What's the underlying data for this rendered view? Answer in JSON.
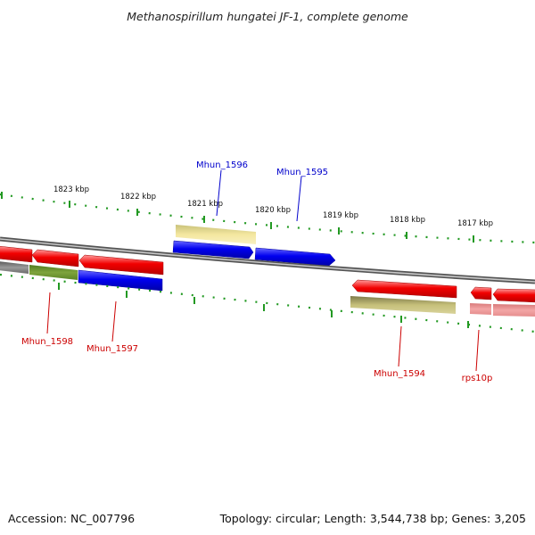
{
  "title": "Methanospirillum hungatei JF-1, complete genome",
  "footer": {
    "accession": "Accession: NC_007796",
    "summary": "Topology: circular; Length: 3,544,738 bp; Genes: 3,205"
  },
  "scale": {
    "labels": [
      "1823 kbp",
      "1822 kbp",
      "1821 kbp",
      "1820 kbp",
      "1819 kbp",
      "1818 kbp",
      "1817 kbp"
    ]
  },
  "genes": [
    {
      "name": "Mhun_1596",
      "strand": "forward"
    },
    {
      "name": "Mhun_1595",
      "strand": "forward"
    },
    {
      "name": "Mhun_1598",
      "strand": "reverse"
    },
    {
      "name": "Mhun_1597",
      "strand": "reverse"
    },
    {
      "name": "Mhun_1594",
      "strand": "reverse"
    },
    {
      "name": "rps10p",
      "strand": "reverse"
    }
  ],
  "colors": {
    "backbone": "#7a7a7a",
    "forward_gene": "#0000ee",
    "reverse_gene": "#ee0000",
    "forward_label": "#0000cc",
    "reverse_label": "#cc0000",
    "scale_ticks": "#229922"
  }
}
